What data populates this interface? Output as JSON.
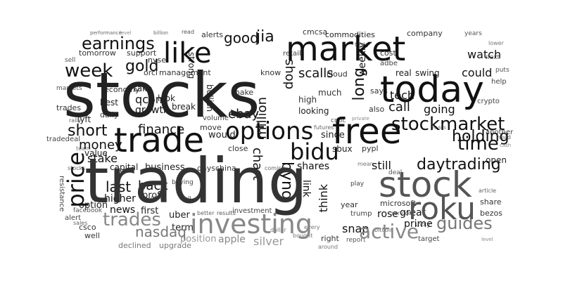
{
  "word_cloud": {
    "background_color": "#ffffff",
    "ink_colors": [
      "#111111",
      "#333333",
      "#555555",
      "#777777",
      "#999999",
      "#bbbbbb"
    ],
    "words": {
      "stocks": "stocks",
      "trading": "trading",
      "market": "market",
      "today": "today",
      "stock": "stock",
      "free": "free",
      "trade": "trade",
      "options": "options",
      "stockmarket": "stockmarket",
      "investing": "investing",
      "roku": "roku",
      "price": "price",
      "like": "like",
      "earnings": "earnings",
      "week": "week",
      "short": "short",
      "time": "time",
      "gold": "gold",
      "daytrading": "daytrading",
      "bidu": "bidu",
      "money": "money",
      "shares": "shares",
      "holding": "holding",
      "finance": "finance",
      "bynd": "bynd",
      "active": "active",
      "nasdaq": "nasdaq",
      "trades": "trades",
      "guides": "guides",
      "chart": "chart",
      "long": "long",
      "jia": "jia",
      "good": "good",
      "scalls": "scalls",
      "watch": "watch",
      "company": "company",
      "commodities": "commodities",
      "call": "call",
      "going": "going",
      "tech": "tech",
      "qcom": "qcom",
      "growth": "growth",
      "value": "value",
      "stake": "stake",
      "capital": "capital",
      "business": "business",
      "back": "back",
      "profit": "profit",
      "last": "last",
      "higher": "higher",
      "news": "news",
      "first": "first",
      "option": "option",
      "csco": "csco",
      "uber": "uber",
      "term": "term",
      "would": "would",
      "move": "move",
      "ebay": "ebay",
      "million": "million",
      "shop": "shop",
      "link": "link",
      "think": "think",
      "since": "since",
      "sbux": "sbux",
      "still": "still",
      "snap": "snap",
      "rose": "rose",
      "great": "great",
      "prime": "prime",
      "apple": "apple",
      "silver": "silver",
      "position": "position",
      "declined": "declined",
      "upgrade": "upgrade",
      "target": "target",
      "report": "report",
      "right": "right",
      "share": "share",
      "bezos": "bezos",
      "open": "open",
      "could": "could",
      "help": "help",
      "next": "next",
      "years": "years",
      "puts": "puts",
      "also": "also",
      "says": "says",
      "real": "real",
      "swing": "swing",
      "cost": "cost",
      "adbe": "adbe",
      "cloud": "cloud",
      "looking": "looking",
      "much": "much",
      "high": "high",
      "make": "make",
      "days": "days",
      "china": "china",
      "close": "close",
      "tomorrow": "tomorrow",
      "support": "support",
      "economy": "economy",
      "best": "best",
      "daily": "daily",
      "take": "take",
      "look": "look",
      "break": "break",
      "management": "management",
      "orcl": "orcl",
      "nyse": "nyse",
      "alerts": "alerts",
      "cmcsa": "cmcsa",
      "retail": "retail",
      "know": "know",
      "lyft": "lyft",
      "facebook": "facebook",
      "alert": "alert",
      "well": "well",
      "sales": "sales",
      "markets": "markets",
      "trump": "trump",
      "microsoft": "microsoft",
      "cnbc": "cnbc",
      "pypl": "pypl",
      "tesla": "tesla",
      "weekly": "weekly",
      "another": "another",
      "crypto": "crypto",
      "bitcoin": "bitcoin",
      "investment": "investment",
      "results": "results",
      "better": "better",
      "buying": "buying",
      "full": "full",
      "volume": "volume",
      "bullish": "bullish",
      "strong": "strong",
      "ready": "ready",
      "sell": "sell",
      "performance": "performance",
      "level": "level",
      "billion": "billion",
      "read": "read",
      "tradedeal": "tradedeal",
      "resistance": "resistance",
      "every": "every",
      "around": "around",
      "coming": "coming",
      "dollar": "dollar",
      "bought": "bought",
      "years_b": "years",
      "lower": "lower",
      "head": "head",
      "cash": "cash",
      "article": "article",
      "level_b": "level",
      "service": "service",
      "play": "play",
      "uvxy": "uvxy",
      "year": "year",
      "deal": "deal",
      "mean": "mean",
      "futures": "futures",
      "private": "private",
      "team": "team",
      "trades_b": "trades",
      "rally": "rally",
      "stocks_b": "stocks"
    }
  }
}
